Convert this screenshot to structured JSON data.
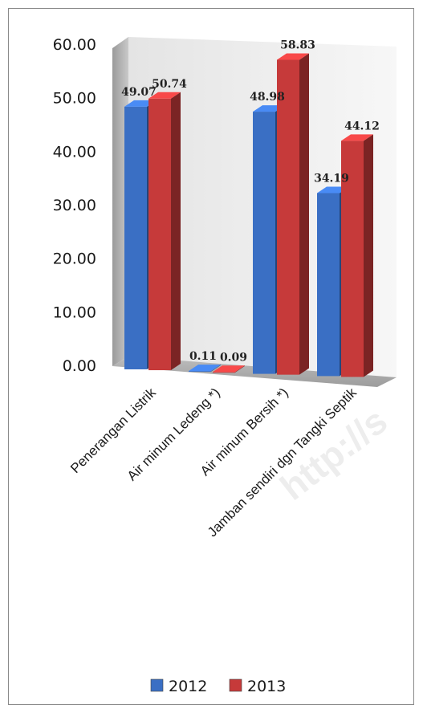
{
  "chart_data": {
    "type": "bar",
    "categories": [
      "Penerangan Listrik",
      "Air minum Ledeng *)",
      "Air minum Bersih *)",
      "Jamban sendiri dgn Tangki Septik"
    ],
    "series": [
      {
        "name": "2012",
        "values": [
          49.07,
          0.11,
          48.98,
          34.19
        ],
        "color": "#3a6fc4"
      },
      {
        "name": "2013",
        "values": [
          50.74,
          0.09,
          58.83,
          44.12
        ],
        "color": "#c63a3a"
      }
    ],
    "value_labels": [
      [
        "49.07",
        "0.11",
        "48.98",
        "34.19"
      ],
      [
        "50.74",
        "0.09",
        "58.83",
        "44.12"
      ]
    ],
    "y_ticks": [
      "0.00",
      "10.00",
      "20.00",
      "30.00",
      "40.00",
      "50.00",
      "60.00"
    ],
    "ylim": [
      0,
      60
    ],
    "three_d": true,
    "legend_position": "bottom",
    "watermark": "http://s"
  }
}
